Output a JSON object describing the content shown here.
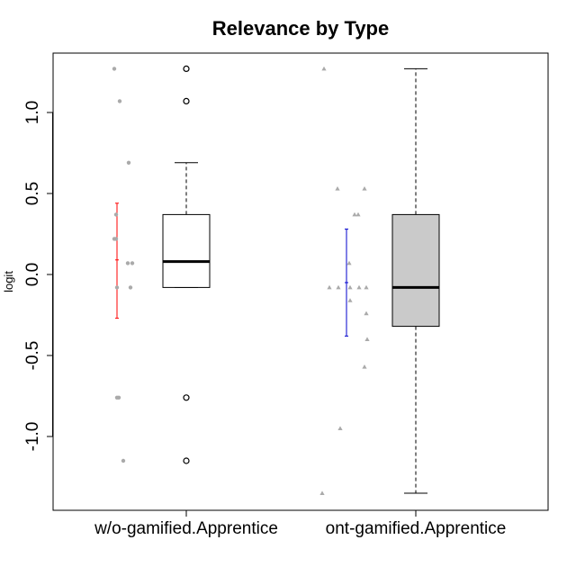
{
  "chart_data": {
    "type": "boxplot",
    "title": "Relevance by Type",
    "xlabel": "",
    "ylabel": "logit",
    "ylim": [
      -1.4,
      1.35
    ],
    "yticks": [
      -1.0,
      -0.5,
      0.0,
      0.5,
      1.0
    ],
    "ytick_labels": [
      "-1.0",
      "-0.5",
      "0.0",
      "0.5",
      "1.0"
    ],
    "categories": [
      "w/o-gamified.Apprentice",
      "ont-gamified.Apprentice"
    ],
    "groups": [
      {
        "name": "w/o-gamified.Apprentice",
        "box_fill": "#ffffff",
        "box": {
          "q1": -0.08,
          "median": 0.08,
          "q3": 0.37,
          "whisker_low": -0.08,
          "whisker_high": 0.69
        },
        "outliers": [
          1.27,
          1.07,
          -0.76,
          -1.15
        ],
        "mean_ci": {
          "mean": 0.09,
          "low": -0.27,
          "high": 0.44,
          "color": "#ff0000"
        },
        "points": [
          {
            "dx": -3,
            "y": 1.27
          },
          {
            "dx": 3,
            "y": 1.07
          },
          {
            "dx": 13,
            "y": 0.69
          },
          {
            "dx": -1,
            "y": 0.37
          },
          {
            "dx": -3,
            "y": 0.22
          },
          {
            "dx": -1,
            "y": 0.22
          },
          {
            "dx": 12,
            "y": 0.07
          },
          {
            "dx": 17,
            "y": 0.07
          },
          {
            "dx": 0,
            "y": -0.08
          },
          {
            "dx": 15,
            "y": -0.08
          },
          {
            "dx": 0,
            "y": -0.76
          },
          {
            "dx": 2,
            "y": -0.76
          },
          {
            "dx": 7,
            "y": -1.15
          }
        ],
        "point_color": "#aaaaaa"
      },
      {
        "name": "ont-gamified.Apprentice",
        "box_fill": "#cacaca",
        "box": {
          "q1": -0.32,
          "median": -0.08,
          "q3": 0.37,
          "whisker_low": -1.35,
          "whisker_high": 1.27
        },
        "outliers": [],
        "mean_ci": {
          "mean": -0.05,
          "low": -0.38,
          "high": 0.28,
          "color": "#0000cc"
        },
        "points": [
          {
            "dx": -25,
            "y": 1.27
          },
          {
            "dx": -10,
            "y": 0.53
          },
          {
            "dx": 20,
            "y": 0.53
          },
          {
            "dx": 9,
            "y": 0.37
          },
          {
            "dx": 13,
            "y": 0.37
          },
          {
            "dx": 3,
            "y": 0.07
          },
          {
            "dx": -19,
            "y": -0.08
          },
          {
            "dx": -9,
            "y": -0.08
          },
          {
            "dx": 4,
            "y": -0.08
          },
          {
            "dx": 14,
            "y": -0.08
          },
          {
            "dx": 22,
            "y": -0.08
          },
          {
            "dx": 4,
            "y": -0.16
          },
          {
            "dx": 22,
            "y": -0.24
          },
          {
            "dx": 23,
            "y": -0.4
          },
          {
            "dx": 20,
            "y": -0.57
          },
          {
            "dx": -7,
            "y": -0.95
          },
          {
            "dx": -27,
            "y": -1.35
          }
        ],
        "point_color": "#aaaaaa"
      }
    ],
    "grid": false,
    "legend": "none"
  }
}
